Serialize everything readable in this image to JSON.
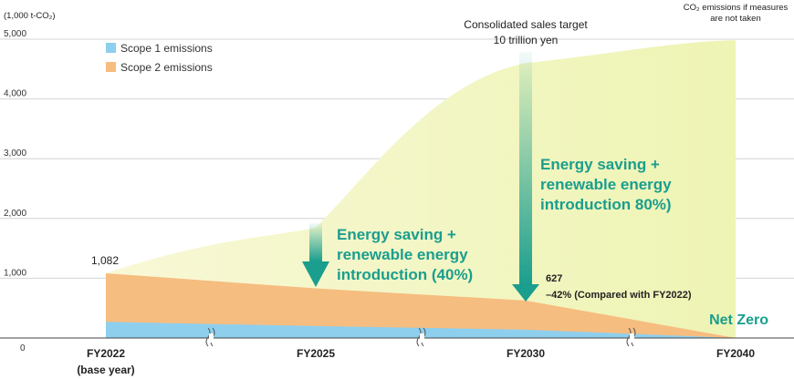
{
  "chart_data": {
    "type": "area",
    "ylabel": "(1,000 t-CO₂)",
    "y_ticks": [
      "0",
      "1,000",
      "2,000",
      "3,000",
      "4,000",
      "5,000"
    ],
    "ylim": [
      0,
      5000
    ],
    "categories": [
      "FY2022",
      "FY2025",
      "FY2030",
      "FY2040"
    ],
    "category_sublabels": [
      "(base year)",
      "",
      "",
      ""
    ],
    "series": [
      {
        "name": "Scope 1 emissions",
        "values": [
          270,
          200,
          140,
          0
        ]
      },
      {
        "name": "Scope 2 emissions",
        "values": [
          812,
          630,
          487,
          0
        ]
      },
      {
        "name": "CO₂ emissions if measures are not taken",
        "values": [
          1082,
          1850,
          4600,
          4980
        ]
      }
    ],
    "legend": [
      "Scope 1 emissions",
      "Scope 2 emissions"
    ],
    "annotations": {
      "start_value": "1,082",
      "sales_target_line1": "Consolidated sales target",
      "sales_target_line2": "10 trillion yen",
      "no_measures_line1": "CO₂ emissions if measures",
      "no_measures_line2": "are not taken",
      "saving40_line1": "Energy saving +",
      "saving40_line2": "renewable energy",
      "saving40_line3": "introduction (40%)",
      "saving80_line1": "Energy saving +",
      "saving80_line2": "renewable energy",
      "saving80_line3": "introduction 80%)",
      "fy2030_value": "627",
      "fy2030_reduction": "–42% (Compared with FY2022)",
      "net_zero": "Net Zero"
    }
  },
  "colors": {
    "scope1": "#8ecfee",
    "scope2": "#f6bd80",
    "no_measures": "#f4f5c2",
    "accent_green": "#1a9e8e",
    "gridline": "#d4d4d4"
  }
}
